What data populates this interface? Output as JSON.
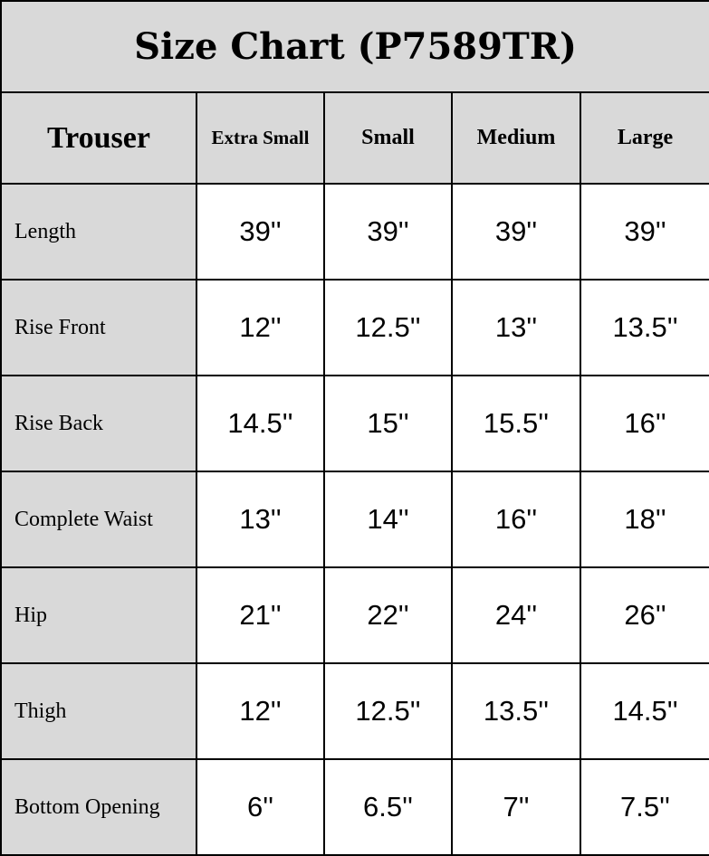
{
  "title": "Size Chart (P7589TR)",
  "header": {
    "corner": "Trouser",
    "sizes": [
      "Extra Small",
      "Small",
      "Medium",
      "Large"
    ]
  },
  "rows": [
    {
      "label": "Length",
      "values": [
        "39''",
        "39''",
        "39''",
        "39''"
      ]
    },
    {
      "label": "Rise Front",
      "values": [
        "12''",
        "12.5''",
        "13''",
        "13.5''"
      ]
    },
    {
      "label": "Rise Back",
      "values": [
        "14.5''",
        "15''",
        "15.5''",
        "16''"
      ]
    },
    {
      "label": "Complete Waist",
      "values": [
        "13''",
        "14''",
        "16''",
        "18''"
      ]
    },
    {
      "label": "Hip",
      "values": [
        "21''",
        "22''",
        "24''",
        "26''"
      ]
    },
    {
      "label": "Thigh",
      "values": [
        "12''",
        "12.5''",
        "13.5''",
        "14.5''"
      ]
    },
    {
      "label": "Bottom Opening",
      "values": [
        "6''",
        "6.5''",
        "7''",
        "7.5''"
      ]
    }
  ],
  "colors": {
    "header_bg": "#d9d9d9",
    "border": "#000000"
  }
}
